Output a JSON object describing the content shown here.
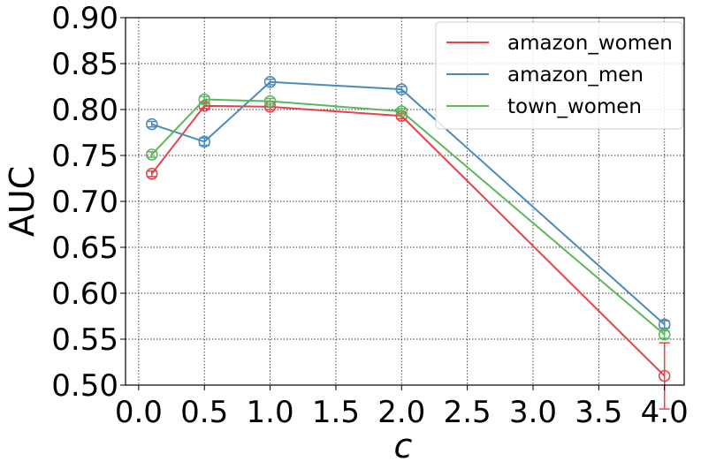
{
  "chart_data": {
    "type": "line",
    "title": "",
    "xlabel": "c",
    "ylabel": "AUC",
    "xlim": [
      -0.1,
      4.15
    ],
    "ylim": [
      0.5,
      0.9
    ],
    "xticks": [
      0.0,
      0.5,
      1.0,
      1.5,
      2.0,
      2.5,
      3.0,
      3.5,
      4.0
    ],
    "xtick_labels": [
      "0.0",
      "0.5",
      "1.0",
      "1.5",
      "2.0",
      "2.5",
      "3.0",
      "3.5",
      "4.0"
    ],
    "yticks": [
      0.5,
      0.55,
      0.6,
      0.65,
      0.7,
      0.75,
      0.8,
      0.85,
      0.9
    ],
    "ytick_labels": [
      "0.50",
      "0.55",
      "0.60",
      "0.65",
      "0.70",
      "0.75",
      "0.80",
      "0.85",
      "0.90"
    ],
    "grid": true,
    "legend_position": "top-right",
    "x": [
      0.1,
      0.5,
      1.0,
      2.0,
      4.0
    ],
    "series": [
      {
        "name": "amazon_women",
        "color": "#e8414b",
        "values": [
          0.73,
          0.804,
          0.803,
          0.793,
          0.51
        ],
        "errors": [
          0.003,
          0.003,
          0.003,
          0.003,
          0.036
        ]
      },
      {
        "name": "amazon_men",
        "color": "#4a8bbb",
        "values": [
          0.784,
          0.765,
          0.83,
          0.822,
          0.566
        ],
        "errors": [
          0.003,
          0.004,
          0.003,
          0.003,
          0.004
        ]
      },
      {
        "name": "town_women",
        "color": "#5cb85c",
        "values": [
          0.751,
          0.811,
          0.809,
          0.798,
          0.555
        ],
        "errors": [
          0.003,
          0.003,
          0.003,
          0.003,
          0.004
        ]
      }
    ]
  }
}
